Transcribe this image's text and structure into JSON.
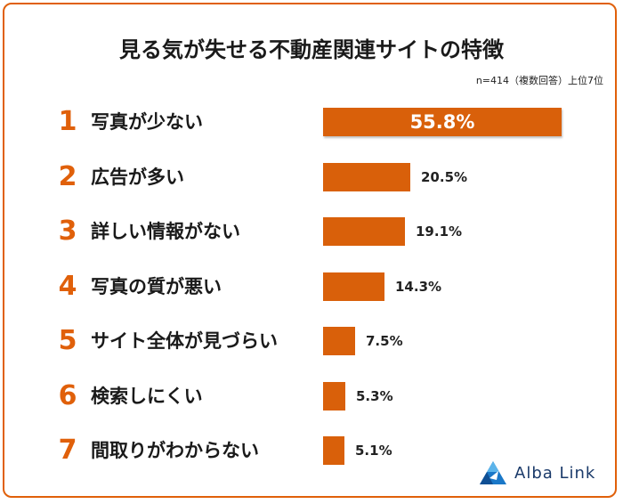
{
  "title": "見る気が失せる不動産関連サイトの特徴",
  "note": "n=414（複数回答）上位7位",
  "logo": {
    "text": "Alba Link"
  },
  "colors": {
    "accent": "#e0600a",
    "bar": "#d9600a",
    "border": "#e0600a"
  },
  "chart_data": {
    "type": "bar",
    "orientation": "horizontal",
    "title": "見る気が失せる不動産関連サイトの特徴",
    "xlabel": "",
    "ylabel": "",
    "categories": [
      "写真が少ない",
      "広告が多い",
      "詳しい情報がない",
      "写真の質が悪い",
      "サイト全体が見づらい",
      "検索しにくい",
      "間取りがわからない"
    ],
    "ranks": [
      "1",
      "2",
      "3",
      "4",
      "5",
      "6",
      "7"
    ],
    "values": [
      55.8,
      20.5,
      19.1,
      14.3,
      7.5,
      5.3,
      5.1
    ],
    "value_labels": [
      "55.8%",
      "20.5%",
      "19.1%",
      "14.3%",
      "7.5%",
      "5.3%",
      "5.1%"
    ],
    "grid": false
  }
}
